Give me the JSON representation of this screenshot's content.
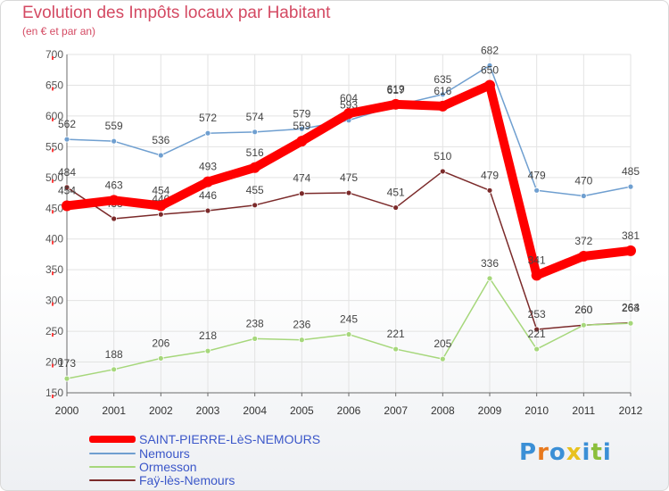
{
  "header": {
    "title": "Evolution des Impôts locaux par Habitant",
    "subtitle": "(en € et par an)"
  },
  "chart_data": {
    "type": "line",
    "title": "Evolution des Impôts locaux par Habitant",
    "subtitle": "(en € et par an)",
    "xlabel": "",
    "ylabel": "",
    "x": [
      "2000",
      "2001",
      "2002",
      "2003",
      "2004",
      "2005",
      "2006",
      "2007",
      "2008",
      "2009",
      "2010",
      "2011",
      "2012"
    ],
    "ylim": [
      150,
      700
    ],
    "yticks": [
      150,
      200,
      250,
      300,
      350,
      400,
      450,
      500,
      550,
      600,
      650,
      700
    ],
    "grid": true,
    "legend_position": "bottom-left",
    "series": [
      {
        "name": "SAINT-PIERRE-LèS-NEMOURS",
        "color": "#ff0000",
        "values": [
          454,
          463,
          454,
          493,
          516,
          559,
          604,
          619,
          616,
          650,
          341,
          372,
          381
        ]
      },
      {
        "name": "Nemours",
        "color": "#6f9fd0",
        "values": [
          562,
          559,
          536,
          572,
          574,
          579,
          593,
          617,
          635,
          682,
          479,
          470,
          485
        ]
      },
      {
        "name": "Ormesson",
        "color": "#a6d77b",
        "values": [
          173,
          188,
          206,
          218,
          238,
          236,
          245,
          221,
          205,
          336,
          221,
          260,
          263
        ]
      },
      {
        "name": "Faÿ-lès-Nemours",
        "color": "#7b2a2a",
        "values": [
          484,
          433,
          440,
          446,
          455,
          474,
          475,
          451,
          510,
          479,
          253,
          260,
          264
        ]
      }
    ]
  },
  "logo": {
    "text": "Proxiti"
  }
}
